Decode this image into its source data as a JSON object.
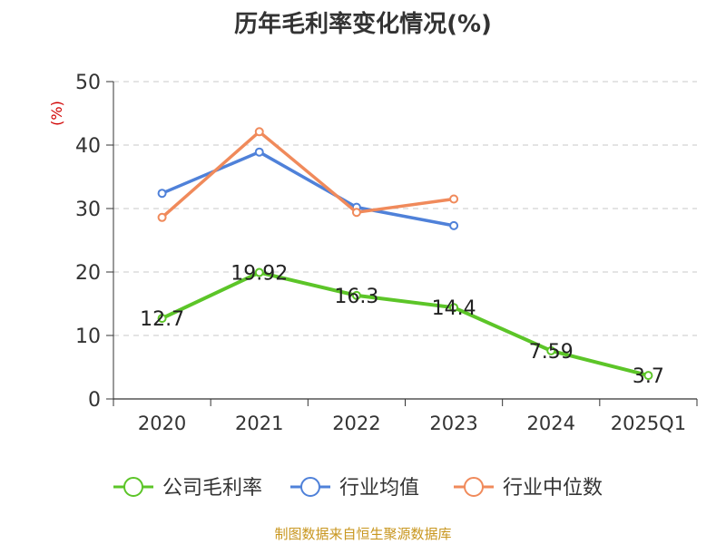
{
  "title": "历年毛利率变化情况(%)",
  "footer": "制图数据来自恒生聚源数据库",
  "chart_data": {
    "type": "line",
    "title": "历年毛利率变化情况(%)",
    "xlabel": "",
    "ylabel": "(%)",
    "ylim": [
      0,
      50
    ],
    "yticks": [
      0,
      10,
      20,
      30,
      40,
      50
    ],
    "grid": true,
    "legend": "bottom",
    "categories": [
      "2020",
      "2021",
      "2022",
      "2023",
      "2024",
      "2025Q1"
    ],
    "series": [
      {
        "name": "公司毛利率",
        "color": "#5cc528",
        "values": [
          12.7,
          19.92,
          16.3,
          14.4,
          7.59,
          3.7
        ],
        "labels": [
          "12.7",
          "19.92",
          "16.3",
          "14.4",
          "7.59",
          "3.7"
        ]
      },
      {
        "name": "行业均值",
        "color": "#4f81d9",
        "values": [
          32.4,
          38.9,
          30.2,
          27.3,
          null,
          null
        ]
      },
      {
        "name": "行业中位数",
        "color": "#f08a5b",
        "values": [
          28.6,
          42.1,
          29.4,
          31.5,
          null,
          null
        ]
      }
    ],
    "colors": {
      "axis": "#333333",
      "grid": "#c8c8c8",
      "ylabel": "#d00000",
      "text": "#333333"
    }
  }
}
